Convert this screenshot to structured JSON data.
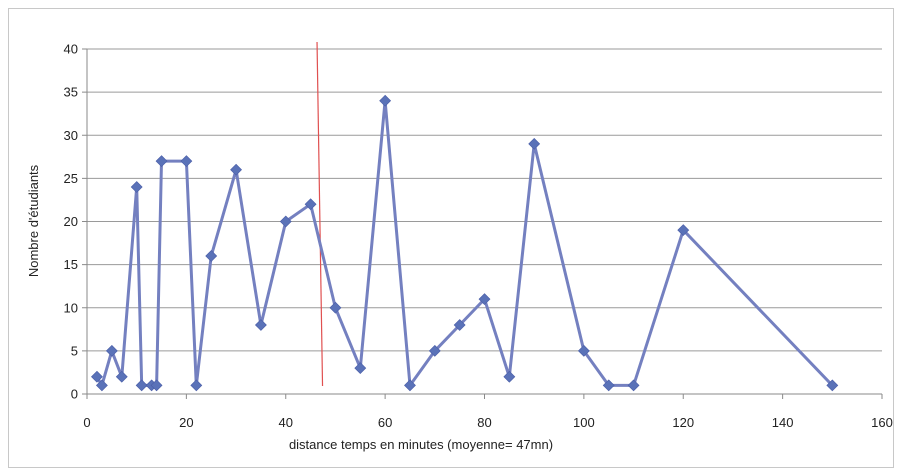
{
  "chart_data": {
    "type": "scatter",
    "xlabel": "distance temps en minutes (moyenne= 47mn)",
    "ylabel": "Nombre d'étudiants",
    "xlim": [
      0,
      160
    ],
    "ylim": [
      0,
      40
    ],
    "xticks": [
      0,
      20,
      40,
      60,
      80,
      100,
      120,
      140,
      160
    ],
    "yticks": [
      0,
      5,
      10,
      15,
      20,
      25,
      30,
      35,
      40
    ],
    "grid": "horizontal",
    "legend": "none",
    "series": [
      {
        "x": [
          2,
          3,
          5,
          7,
          10,
          11,
          13,
          14,
          15,
          20,
          22,
          25,
          30,
          35,
          40,
          45,
          50,
          55,
          60,
          65,
          70,
          75,
          80,
          85,
          90,
          100,
          105,
          110,
          120,
          150
        ],
        "y": [
          2,
          1,
          5,
          2,
          24,
          1,
          1,
          1,
          27,
          27,
          1,
          16,
          26,
          8,
          20,
          22,
          10,
          3,
          34,
          1,
          5,
          8,
          11,
          2,
          29,
          5,
          1,
          1,
          19,
          1
        ],
        "color": "#7480c0",
        "marker": "diamond",
        "marker_color": "#5a72b8"
      }
    ],
    "reference_line": {
      "x": 47,
      "color": "#e05050"
    }
  }
}
